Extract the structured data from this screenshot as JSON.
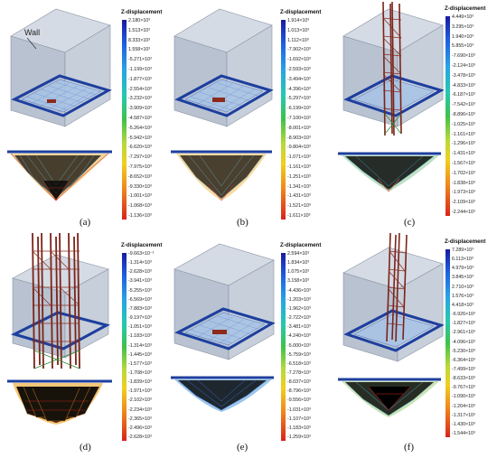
{
  "wall_label": "Wall",
  "legend_title": "Z-displacement",
  "panels": [
    {
      "label": "(a)",
      "ticks": [
        "2.180×10³",
        "1.513×10³",
        "8.333×10³",
        "1.558×10³",
        "-5.271×10³",
        "-1.199×10³",
        "-1.877×10³",
        "-2.554×10³",
        "-3.232×10³",
        "-3.909×10³",
        "-4.587×10³",
        "-5.264×10³",
        "-5.942×10³",
        "-6.620×10³",
        "-7.297×10³",
        "-7.975×10³",
        "-8.652×10³",
        "-9.330×10³",
        "-1.001×10³",
        "-1.068×10³",
        "-1.136×10³"
      ]
    },
    {
      "label": "(b)",
      "ticks": [
        "1.914×10³",
        "1.013×10³",
        "1.112×10³",
        "-7.902×10³",
        "-1.692×10³",
        "-2.593×10³",
        "-3.494×10³",
        "-4.396×10³",
        "-5.297×10³",
        "-6.199×10³",
        "-7.100×10³",
        "-8.001×10³",
        "-8.903×10³",
        "-9.804×10³",
        "-1.071×10³",
        "-1.161×10³",
        "-1.251×10³",
        "-1.341×10³",
        "-1.431×10³",
        "-1.521×10³",
        "-1.611×10³"
      ]
    },
    {
      "label": "(c)",
      "ticks": [
        "4.449×10³",
        "3.295×10³",
        "1.940×10³",
        "5.855×10³",
        "-7.690×10³",
        "-2.124×10³",
        "-3.478×10³",
        "-4.833×10³",
        "-6.187×10³",
        "-7.542×10³",
        "-8.896×10³",
        "-1.025×10³",
        "-1.161×10³",
        "-1.296×10³",
        "-1.431×10³",
        "-1.567×10³",
        "-1.702×10³",
        "-1.838×10³",
        "-1.973×10³",
        "-2.109×10³",
        "-2.244×10³"
      ]
    },
    {
      "label": "(d)",
      "ticks": [
        "-9.663×10⁻¹",
        "-1.314×10³",
        "-2.628×10³",
        "-3.941×10³",
        "-5.255×10³",
        "-6.569×10³",
        "-7.883×10³",
        "-9.197×10³",
        "-1.051×10³",
        "-1.183×10³",
        "-1.314×10³",
        "-1.445×10³",
        "-1.577×10³",
        "-1.708×10³",
        "-1.839×10³",
        "-1.971×10³",
        "-2.102×10³",
        "-2.234×10³",
        "-2.365×10³",
        "-2.496×10³",
        "-2.628×10³"
      ]
    },
    {
      "label": "(e)",
      "ticks": [
        "2.594×10³",
        "1.834×10³",
        "1.075×10³",
        "3.158×10³",
        "-4.436×10³",
        "-1.203×10³",
        "-1.962×10³",
        "-2.722×10³",
        "-3.481×10³",
        "-4.240×10³",
        "-5.000×10³",
        "-5.759×10³",
        "-6.518×10³",
        "-7.278×10³",
        "-8.037×10³",
        "-8.796×10³",
        "-9.556×10³",
        "-1.031×10³",
        "-1.107×10³",
        "-1.183×10³",
        "-1.259×10³"
      ]
    },
    {
      "label": "(f)",
      "ticks": [
        "7.289×10³",
        "6.113×10³",
        "4.979×10³",
        "3.845×10³",
        "2.710×10³",
        "1.576×10³",
        "4.418×10³",
        "-6.926×10³",
        "-1.827×10³",
        "-2.961×10³",
        "-4.096×10³",
        "-5.230×10³",
        "-6.364×10³",
        "-7.499×10³",
        "-8.633×10³",
        "-9.767×10³",
        "-1.090×10³",
        "-1.204×10³",
        "-1.317×10³",
        "-1.430×10³",
        "-1.544×10³"
      ]
    }
  ]
}
